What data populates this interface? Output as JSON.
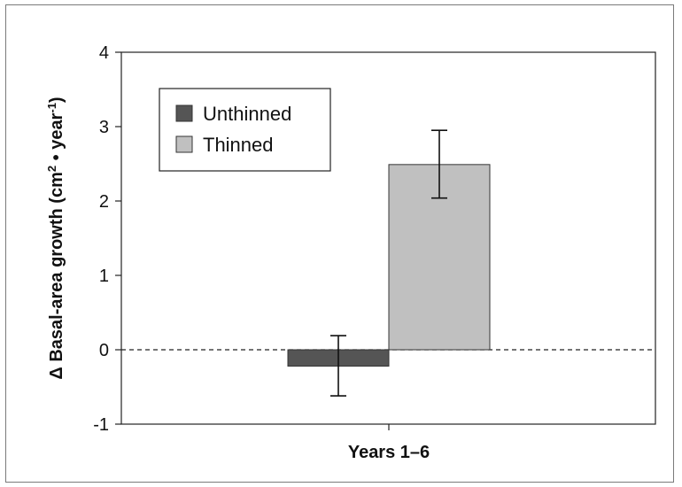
{
  "chart_data": {
    "type": "bar",
    "categories": [
      "Years 1–6"
    ],
    "series": [
      {
        "name": "Unthinned",
        "values": [
          -0.22
        ],
        "err_low": [
          -0.62
        ],
        "err_high": [
          0.19
        ],
        "color": "#555555"
      },
      {
        "name": "Thinned",
        "values": [
          2.49
        ],
        "err_low": [
          2.04
        ],
        "err_high": [
          2.95
        ],
        "color": "#c0c0c0"
      }
    ],
    "xlabel": "Years 1–6",
    "ylabel": {
      "prefix": "Δ Basal-area growth (cm",
      "sup1": "2",
      "middle": " • year",
      "sup2": "-1",
      "suffix": ")"
    },
    "ylim": [
      -1,
      4
    ],
    "yticks": [
      -1,
      0,
      1,
      2,
      3,
      4
    ],
    "zero_line": "dashed",
    "grid": false,
    "legend_position": "top-left"
  }
}
